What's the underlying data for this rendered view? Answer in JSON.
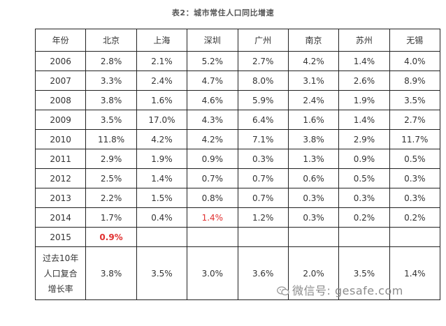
{
  "title": "表2：城市常住人口同比增速",
  "table": {
    "headers": [
      "年份",
      "北京",
      "上海",
      "深圳",
      "广州",
      "南京",
      "苏州",
      "无锡"
    ],
    "rows": [
      [
        "2006",
        "2.8%",
        "2.1%",
        "5.2%",
        "2.7%",
        "4.2%",
        "1.4%",
        "4.0%"
      ],
      [
        "2007",
        "3.3%",
        "2.4%",
        "4.7%",
        "8.0%",
        "3.1%",
        "2.6%",
        "8.9%"
      ],
      [
        "2008",
        "3.8%",
        "1.6%",
        "4.6%",
        "5.9%",
        "2.4%",
        "1.9%",
        "3.5%"
      ],
      [
        "2009",
        "3.5%",
        "17.0%",
        "4.3%",
        "6.4%",
        "1.6%",
        "1.4%",
        "2.7%"
      ],
      [
        "2010",
        "11.8%",
        "4.2%",
        "4.2%",
        "7.1%",
        "3.8%",
        "2.9%",
        "11.7%"
      ],
      [
        "2011",
        "2.9%",
        "1.9%",
        "0.9%",
        "0.3%",
        "1.3%",
        "0.9%",
        "0.5%"
      ],
      [
        "2012",
        "2.5%",
        "1.4%",
        "0.7%",
        "0.7%",
        "0.6%",
        "0.5%",
        "0.3%"
      ],
      [
        "2013",
        "2.2%",
        "1.5%",
        "0.8%",
        "0.7%",
        "0.3%",
        "0.3%",
        "0.3%"
      ],
      [
        "2014",
        "1.7%",
        "0.4%",
        "1.4%",
        "1.2%",
        "0.3%",
        "0.2%",
        "0.2%"
      ],
      [
        "2015",
        "0.9%",
        "",
        "",
        "",
        "",
        "",
        ""
      ]
    ],
    "last_row": {
      "label_lines": [
        "过去10年",
        "人口复合",
        "增长率"
      ],
      "values": [
        "3.8%",
        "3.5%",
        "3.0%",
        "3.6%",
        "2.0%",
        "3.5%",
        "1.4%"
      ]
    }
  },
  "highlight_color": "#e03030",
  "watermark": {
    "icon": "wechat-icon",
    "text": "微信号: gesafe.com"
  }
}
